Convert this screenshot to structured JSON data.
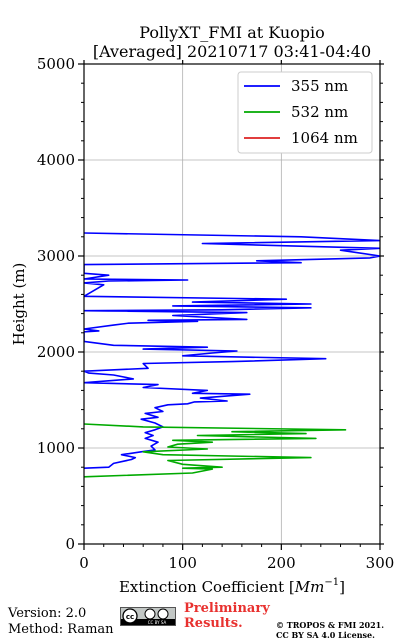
{
  "title_line1": "PollyXT_FMI at Kuopio",
  "title_line2": "[Averaged] 20210717 03:41-04:40",
  "footer": {
    "version": "Version: 2.0",
    "method": "Method: Raman",
    "preliminary_line1": "Preliminary",
    "preliminary_line2": "Results.",
    "copyright_line1": "© TROPOS & FMI 2021.",
    "copyright_line2": "CC BY SA 4.0 License.",
    "license_badge": "CC BY SA"
  },
  "chart_data": {
    "type": "line",
    "title": "PollyXT_FMI at Kuopio [Averaged] 20210717 03:41-04:40",
    "xlabel": "Extinction Coefficient [Mm^-1]",
    "ylabel": "Height (m)",
    "xlim": [
      0,
      300
    ],
    "ylim": [
      0,
      5000
    ],
    "xticks": [
      0,
      100,
      200,
      300
    ],
    "yticks": [
      0,
      1000,
      2000,
      3000,
      4000,
      5000
    ],
    "grid": true,
    "legend_position": "top-right",
    "series": [
      {
        "name": "355 nm",
        "color": "#0000ff",
        "points": [
          [
            0,
            790
          ],
          [
            25,
            800
          ],
          [
            30,
            840
          ],
          [
            48,
            880
          ],
          [
            52,
            900
          ],
          [
            38,
            930
          ],
          [
            58,
            960
          ],
          [
            72,
            980
          ],
          [
            68,
            1020
          ],
          [
            75,
            1060
          ],
          [
            62,
            1100
          ],
          [
            70,
            1130
          ],
          [
            62,
            1160
          ],
          [
            72,
            1190
          ],
          [
            80,
            1220
          ],
          [
            72,
            1260
          ],
          [
            58,
            1300
          ],
          [
            75,
            1320
          ],
          [
            62,
            1360
          ],
          [
            80,
            1380
          ],
          [
            72,
            1420
          ],
          [
            85,
            1450
          ],
          [
            105,
            1460
          ],
          [
            112,
            1480
          ],
          [
            145,
            1490
          ],
          [
            118,
            1520
          ],
          [
            168,
            1560
          ],
          [
            110,
            1570
          ],
          [
            125,
            1600
          ],
          [
            60,
            1630
          ],
          [
            75,
            1660
          ],
          [
            0,
            1680
          ],
          [
            50,
            1720
          ],
          [
            30,
            1760
          ],
          [
            5,
            1780
          ],
          [
            0,
            1800
          ],
          [
            65,
            1830
          ],
          [
            60,
            1880
          ],
          [
            150,
            1900
          ],
          [
            245,
            1930
          ],
          [
            100,
            1960
          ],
          [
            130,
            1990
          ],
          [
            155,
            2010
          ],
          [
            60,
            2030
          ],
          [
            125,
            2050
          ],
          [
            30,
            2070
          ],
          [
            0,
            2110
          ],
          [
            0,
            2210
          ],
          [
            15,
            2220
          ],
          [
            0,
            2240
          ],
          [
            30,
            2280
          ],
          [
            45,
            2300
          ],
          [
            115,
            2320
          ],
          [
            65,
            2330
          ],
          [
            165,
            2340
          ],
          [
            90,
            2380
          ],
          [
            165,
            2410
          ],
          [
            0,
            2430
          ],
          [
            140,
            2440
          ],
          [
            230,
            2460
          ],
          [
            90,
            2480
          ],
          [
            230,
            2500
          ],
          [
            110,
            2520
          ],
          [
            205,
            2550
          ],
          [
            0,
            2580
          ],
          [
            20,
            2700
          ],
          [
            0,
            2720
          ],
          [
            25,
            2740
          ],
          [
            105,
            2750
          ],
          [
            0,
            2760
          ],
          [
            25,
            2800
          ],
          [
            0,
            2820
          ],
          [
            0,
            2910
          ],
          [
            220,
            2930
          ],
          [
            175,
            2950
          ],
          [
            290,
            2980
          ],
          [
            300,
            3000
          ],
          [
            260,
            3060
          ],
          [
            300,
            3080
          ],
          [
            120,
            3130
          ],
          [
            300,
            3160
          ],
          [
            220,
            3200
          ],
          [
            0,
            3240
          ]
        ]
      },
      {
        "name": "532 nm",
        "color": "#00aa00",
        "points": [
          [
            0,
            700
          ],
          [
            110,
            740
          ],
          [
            130,
            780
          ],
          [
            100,
            790
          ],
          [
            140,
            800
          ],
          [
            100,
            830
          ],
          [
            85,
            870
          ],
          [
            230,
            900
          ],
          [
            80,
            930
          ],
          [
            60,
            960
          ],
          [
            125,
            990
          ],
          [
            85,
            1010
          ],
          [
            95,
            1040
          ],
          [
            130,
            1060
          ],
          [
            90,
            1080
          ],
          [
            235,
            1100
          ],
          [
            115,
            1130
          ],
          [
            225,
            1150
          ],
          [
            150,
            1170
          ],
          [
            265,
            1190
          ],
          [
            60,
            1220
          ],
          [
            0,
            1250
          ]
        ]
      },
      {
        "name": "1064 nm",
        "color": "#dd2222",
        "points": []
      }
    ]
  }
}
